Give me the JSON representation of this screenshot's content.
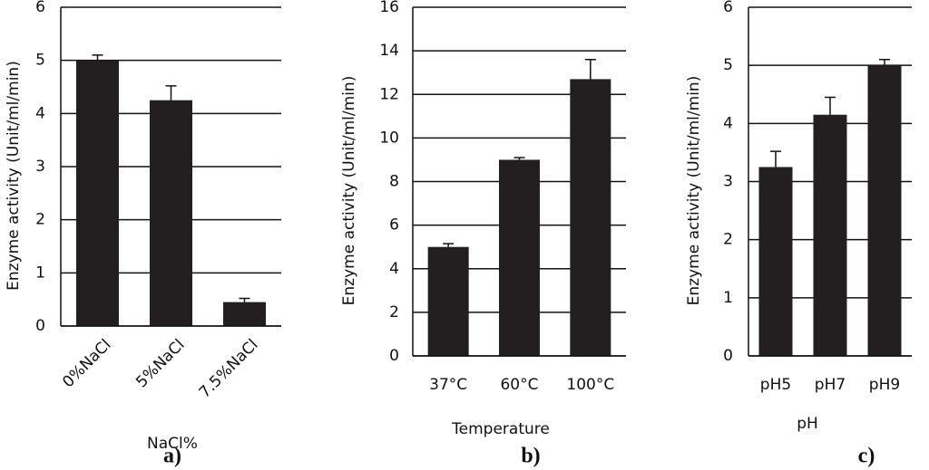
{
  "chart_data": [
    {
      "type": "bar",
      "panel_label": "a)",
      "ylabel": "Enzyme activity (Unit/ml/min)",
      "xlabel": "NaCl%",
      "categories": [
        "0%NaCl",
        "5%NaCl",
        "7.5%NaCl"
      ],
      "values": [
        5.0,
        4.25,
        0.45
      ],
      "errors": [
        0.1,
        0.27,
        0.07
      ],
      "color": "#231f20",
      "ylim": [
        0,
        6
      ],
      "yticks": [
        0,
        1,
        2,
        3,
        4,
        5,
        6
      ],
      "grid": true,
      "rotate_labels": true
    },
    {
      "type": "bar",
      "panel_label": "b)",
      "ylabel": "Enzyme activity (Unit/ml/min)",
      "xlabel": "Temperature",
      "categories": [
        "37°C",
        "60°C",
        "100°C"
      ],
      "values": [
        5.0,
        9.0,
        12.7
      ],
      "errors": [
        0.15,
        0.1,
        0.9
      ],
      "color": "#231f20",
      "ylim": [
        0,
        16
      ],
      "yticks": [
        0,
        2,
        4,
        6,
        8,
        10,
        12,
        14,
        16
      ],
      "grid": true,
      "rotate_labels": false
    },
    {
      "type": "bar",
      "panel_label": "c)",
      "ylabel": "Enzyme activity (Unit/ml/min)",
      "xlabel": "pH",
      "categories": [
        "pH5",
        "pH7",
        "pH9"
      ],
      "values": [
        3.25,
        4.15,
        5.0
      ],
      "errors": [
        0.27,
        0.3,
        0.1
      ],
      "color": "#231f20",
      "ylim": [
        0,
        6
      ],
      "yticks": [
        0,
        1,
        2,
        3,
        4,
        5,
        6
      ],
      "grid": true,
      "rotate_labels": false
    }
  ]
}
